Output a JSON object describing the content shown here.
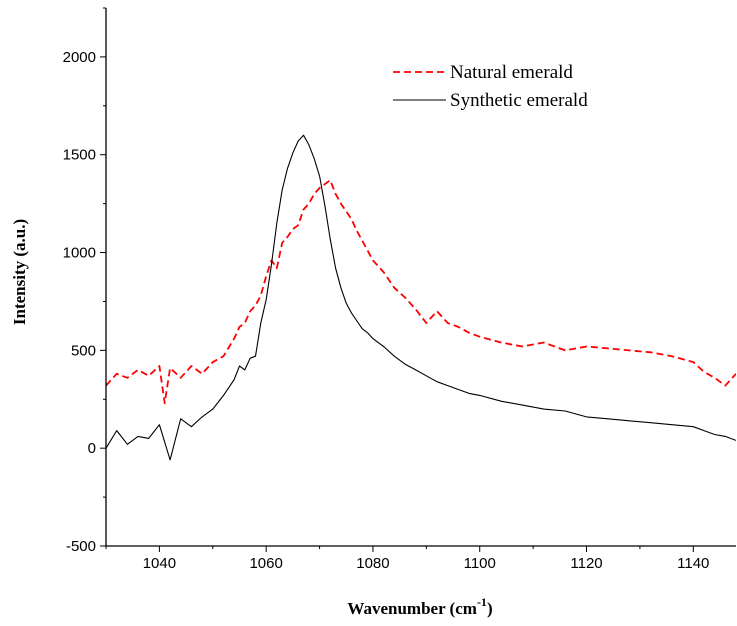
{
  "chart_data": {
    "type": "line",
    "xlabel": "Wavenumber (cm",
    "xlabel_sup": "-1",
    "xlabel_close": ")",
    "ylabel": "Intensity (a.u.)",
    "xlim": [
      1030,
      1148
    ],
    "ylim": [
      -500,
      2250
    ],
    "xticks": [
      1040,
      1060,
      1080,
      1100,
      1120,
      1140
    ],
    "yticks": [
      -500,
      0,
      500,
      1000,
      1500,
      2000
    ],
    "grid": false,
    "legend_position": "top-right",
    "series": [
      {
        "name": "Natural emerald",
        "color": "#ff0000",
        "dash": "dashed",
        "x": [
          1030,
          1032,
          1034,
          1036,
          1038,
          1040,
          1041,
          1042,
          1044,
          1046,
          1048,
          1050,
          1052,
          1054,
          1055,
          1056,
          1057,
          1058,
          1059,
          1060,
          1061,
          1062,
          1063,
          1064,
          1065,
          1066,
          1067,
          1068,
          1069,
          1070,
          1071,
          1072,
          1073,
          1074,
          1075,
          1076,
          1077,
          1078,
          1079,
          1080,
          1082,
          1084,
          1086,
          1088,
          1090,
          1092,
          1094,
          1096,
          1098,
          1100,
          1104,
          1108,
          1112,
          1116,
          1120,
          1124,
          1128,
          1132,
          1136,
          1140,
          1142,
          1144,
          1146,
          1148
        ],
        "y": [
          320,
          380,
          360,
          400,
          370,
          420,
          230,
          410,
          360,
          420,
          380,
          440,
          470,
          560,
          620,
          640,
          700,
          730,
          780,
          880,
          960,
          920,
          1050,
          1080,
          1120,
          1140,
          1220,
          1250,
          1300,
          1330,
          1350,
          1370,
          1300,
          1250,
          1210,
          1170,
          1110,
          1060,
          1010,
          960,
          900,
          820,
          770,
          710,
          640,
          700,
          640,
          620,
          590,
          570,
          540,
          520,
          540,
          500,
          520,
          510,
          500,
          490,
          470,
          440,
          390,
          360,
          320,
          380
        ]
      },
      {
        "name": "Synthetic emerald",
        "color": "#000000",
        "dash": "solid",
        "x": [
          1030,
          1032,
          1034,
          1036,
          1038,
          1040,
          1042,
          1044,
          1046,
          1048,
          1050,
          1052,
          1054,
          1055,
          1056,
          1057,
          1058,
          1059,
          1060,
          1061,
          1062,
          1063,
          1064,
          1065,
          1066,
          1067,
          1068,
          1069,
          1070,
          1071,
          1072,
          1073,
          1074,
          1075,
          1076,
          1077,
          1078,
          1079,
          1080,
          1082,
          1084,
          1086,
          1088,
          1090,
          1092,
          1094,
          1096,
          1098,
          1100,
          1104,
          1108,
          1112,
          1116,
          1120,
          1124,
          1128,
          1132,
          1136,
          1140,
          1142,
          1144,
          1146,
          1148
        ],
        "y": [
          0,
          90,
          20,
          60,
          50,
          120,
          -60,
          150,
          110,
          160,
          200,
          270,
          350,
          420,
          400,
          460,
          470,
          640,
          760,
          940,
          1150,
          1320,
          1430,
          1510,
          1570,
          1600,
          1550,
          1480,
          1390,
          1240,
          1070,
          920,
          820,
          740,
          690,
          650,
          610,
          590,
          560,
          520,
          470,
          430,
          400,
          370,
          340,
          320,
          300,
          280,
          270,
          240,
          220,
          200,
          190,
          160,
          150,
          140,
          130,
          120,
          110,
          90,
          70,
          60,
          40
        ]
      }
    ]
  }
}
